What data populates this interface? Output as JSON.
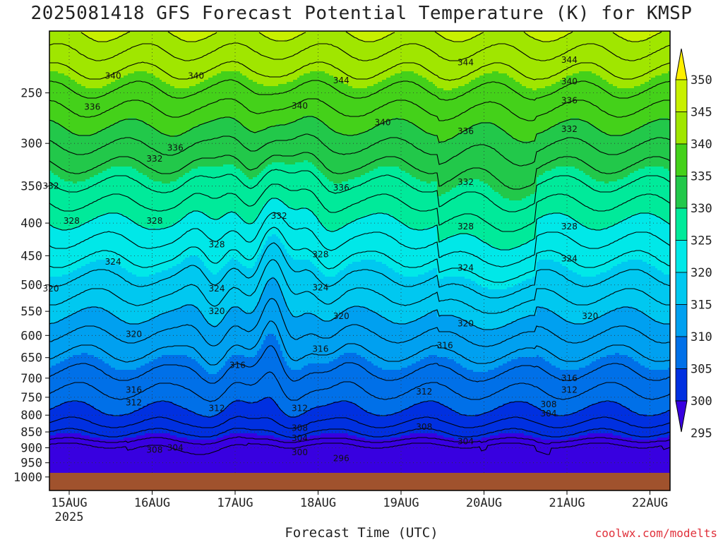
{
  "title": "2025081418 GFS Forecast Potential Temperature (K) for KMSP",
  "credit": "coolwx.com/modelts",
  "chart_data": {
    "type": "heatmap",
    "title": "2025081418 GFS Forecast Potential Temperature (K) for KMSP",
    "xlabel": "Forecast Time (UTC)",
    "ylabel": "",
    "x_ticks": [
      "15AUG",
      "16AUG",
      "17AUG",
      "18AUG",
      "19AUG",
      "20AUG",
      "21AUG",
      "22AUG"
    ],
    "x_ticks_sub": [
      "2025",
      "",
      "",
      "",
      "",
      "",
      "",
      ""
    ],
    "y_ticks": [
      250,
      300,
      350,
      400,
      450,
      500,
      550,
      600,
      650,
      700,
      750,
      800,
      850,
      900,
      950,
      1000
    ],
    "y_scale": "log",
    "colorbar_levels": [
      350,
      345,
      340,
      335,
      330,
      325,
      320,
      315,
      310,
      305,
      300,
      295
    ],
    "colorbar_colors": [
      "#fff000",
      "#c8f000",
      "#a0e600",
      "#44d11a",
      "#22c84a",
      "#00ea9a",
      "#00e8e8",
      "#00c8f0",
      "#00a0f0",
      "#0070e8",
      "#0030e0",
      "#3800e0"
    ],
    "contour_labels": [
      {
        "text": "340",
        "t": "15AUG 18",
        "p": 235
      },
      {
        "text": "340",
        "t": "16AUG 18",
        "p": 235
      },
      {
        "text": "344",
        "t": "18AUG 12",
        "p": 239
      },
      {
        "text": "344",
        "t": "20AUG 00",
        "p": 224
      },
      {
        "text": "344",
        "t": "21AUG 06",
        "p": 222
      },
      {
        "text": "340",
        "t": "21AUG 06",
        "p": 240
      },
      {
        "text": "340",
        "t": "17AUG 24",
        "p": 262
      },
      {
        "text": "340",
        "t": "19AUG 00",
        "p": 278
      },
      {
        "text": "336",
        "t": "15AUG 12",
        "p": 263
      },
      {
        "text": "336",
        "t": "21AUG 06",
        "p": 257
      },
      {
        "text": "336",
        "t": "20AUG 00",
        "p": 287
      },
      {
        "text": "336",
        "t": "16AUG 12",
        "p": 305
      },
      {
        "text": "336",
        "t": "18AUG 12",
        "p": 352
      },
      {
        "text": "332",
        "t": "21AUG 06",
        "p": 285
      },
      {
        "text": "332",
        "t": "16AUG 06",
        "p": 317
      },
      {
        "text": "332",
        "t": "15AUG 00",
        "p": 350
      },
      {
        "text": "332",
        "t": "19AUG 24",
        "p": 345
      },
      {
        "text": "332",
        "t": "17AUG 18",
        "p": 390
      },
      {
        "text": "328",
        "t": "15AUG 06",
        "p": 397
      },
      {
        "text": "328",
        "t": "16AUG 06",
        "p": 397
      },
      {
        "text": "328",
        "t": "20AUG 00",
        "p": 405
      },
      {
        "text": "328",
        "t": "21AUG 06",
        "p": 405
      },
      {
        "text": "328",
        "t": "17AUG 00",
        "p": 432
      },
      {
        "text": "328",
        "t": "18AUG 06",
        "p": 448
      },
      {
        "text": "324",
        "t": "15AUG 18",
        "p": 460
      },
      {
        "text": "324",
        "t": "21AUG 06",
        "p": 455
      },
      {
        "text": "324",
        "t": "20AUG 00",
        "p": 470
      },
      {
        "text": "324",
        "t": "17AUG 00",
        "p": 507
      },
      {
        "text": "324",
        "t": "18AUG 06",
        "p": 505
      },
      {
        "text": "320",
        "t": "15AUG 00",
        "p": 507
      },
      {
        "text": "320",
        "t": "17AUG 00",
        "p": 550
      },
      {
        "text": "320",
        "t": "18AUG 12",
        "p": 560
      },
      {
        "text": "320",
        "t": "20AUG 00",
        "p": 575
      },
      {
        "text": "320",
        "t": "21AUG 12",
        "p": 560
      },
      {
        "text": "320",
        "t": "16AUG 00",
        "p": 597
      },
      {
        "text": "316",
        "t": "18AUG 06",
        "p": 630
      },
      {
        "text": "316",
        "t": "19AUG 18",
        "p": 622
      },
      {
        "text": "316",
        "t": "17AUG 06",
        "p": 668
      },
      {
        "text": "316",
        "t": "21AUG 06",
        "p": 700
      },
      {
        "text": "316",
        "t": "16AUG 00",
        "p": 730
      },
      {
        "text": "312",
        "t": "16AUG 00",
        "p": 765
      },
      {
        "text": "312",
        "t": "17AUG 00",
        "p": 780
      },
      {
        "text": "312",
        "t": "18AUG 00",
        "p": 780
      },
      {
        "text": "312",
        "t": "19AUG 12",
        "p": 735
      },
      {
        "text": "312",
        "t": "21AUG 06",
        "p": 730
      },
      {
        "text": "308",
        "t": "21AUG 00",
        "p": 770
      },
      {
        "text": "304",
        "t": "21AUG 00",
        "p": 795
      },
      {
        "text": "308",
        "t": "18AUG 00",
        "p": 838
      },
      {
        "text": "308",
        "t": "19AUG 12",
        "p": 835
      },
      {
        "text": "304",
        "t": "18AUG 00",
        "p": 870
      },
      {
        "text": "304",
        "t": "19AUG 24",
        "p": 880
      },
      {
        "text": "304",
        "t": "16AUG 12",
        "p": 900
      },
      {
        "text": "308",
        "t": "16AUG 06",
        "p": 907
      },
      {
        "text": "300",
        "t": "18AUG 00",
        "p": 915
      },
      {
        "text": "296",
        "t": "18AUG 12",
        "p": 935
      }
    ]
  }
}
